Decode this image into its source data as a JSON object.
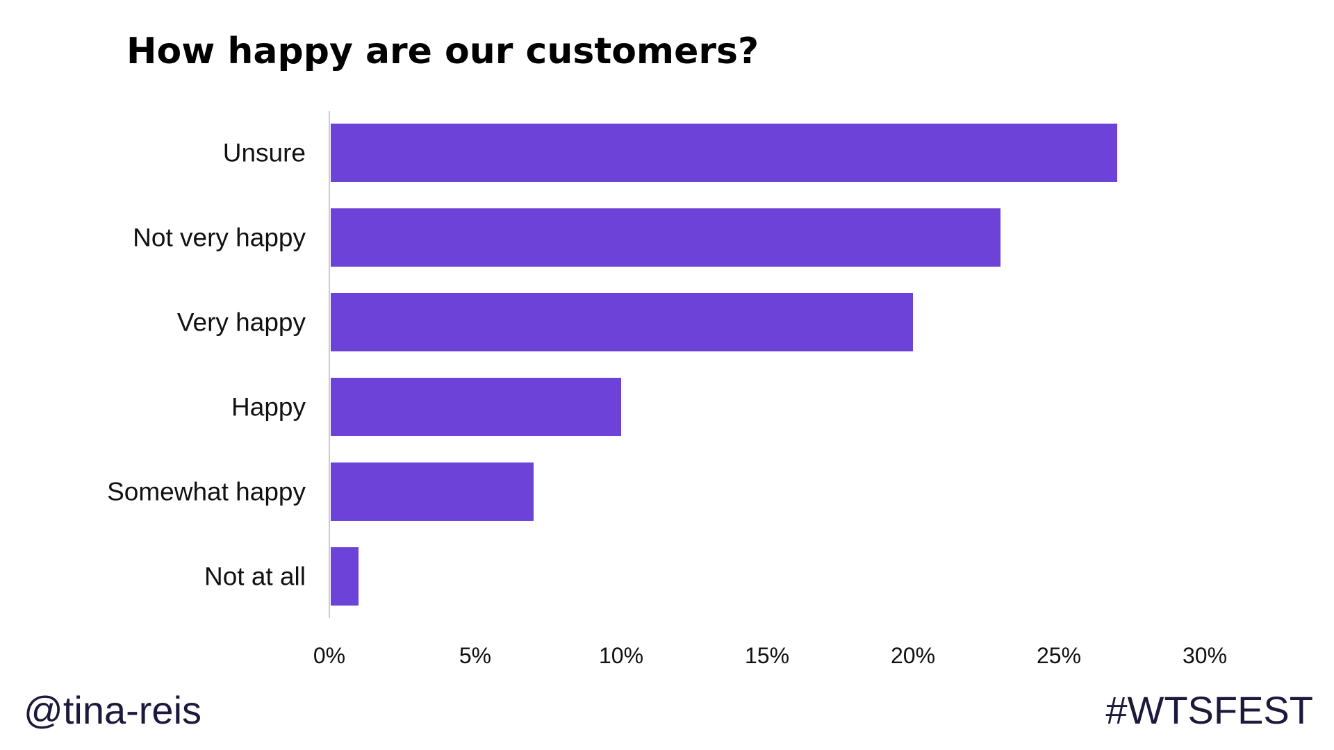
{
  "chart_data": {
    "type": "bar",
    "orientation": "horizontal",
    "title": "How happy are our customers?",
    "categories": [
      "Unsure",
      "Not very happy",
      "Very happy",
      "Happy",
      "Somewhat happy",
      "Not at all"
    ],
    "values": [
      27,
      23,
      20,
      10,
      7,
      1
    ],
    "value_unit": "%",
    "xlim": [
      0,
      30
    ],
    "xticks": [
      0,
      5,
      10,
      15,
      20,
      25,
      30
    ],
    "xtick_labels": [
      "0%",
      "5%",
      "10%",
      "15%",
      "20%",
      "25%",
      "30%"
    ],
    "xlabel": "",
    "ylabel": "",
    "grid": false,
    "legend": "none",
    "bar_color": "#6c42d8"
  },
  "footer": {
    "handle": "@tina-reis",
    "hashtag": "#WTSFEST"
  },
  "colors": {
    "bar": "#6c42d8",
    "axis_line": "#cccccc",
    "footer_text": "#1b1a3c"
  }
}
